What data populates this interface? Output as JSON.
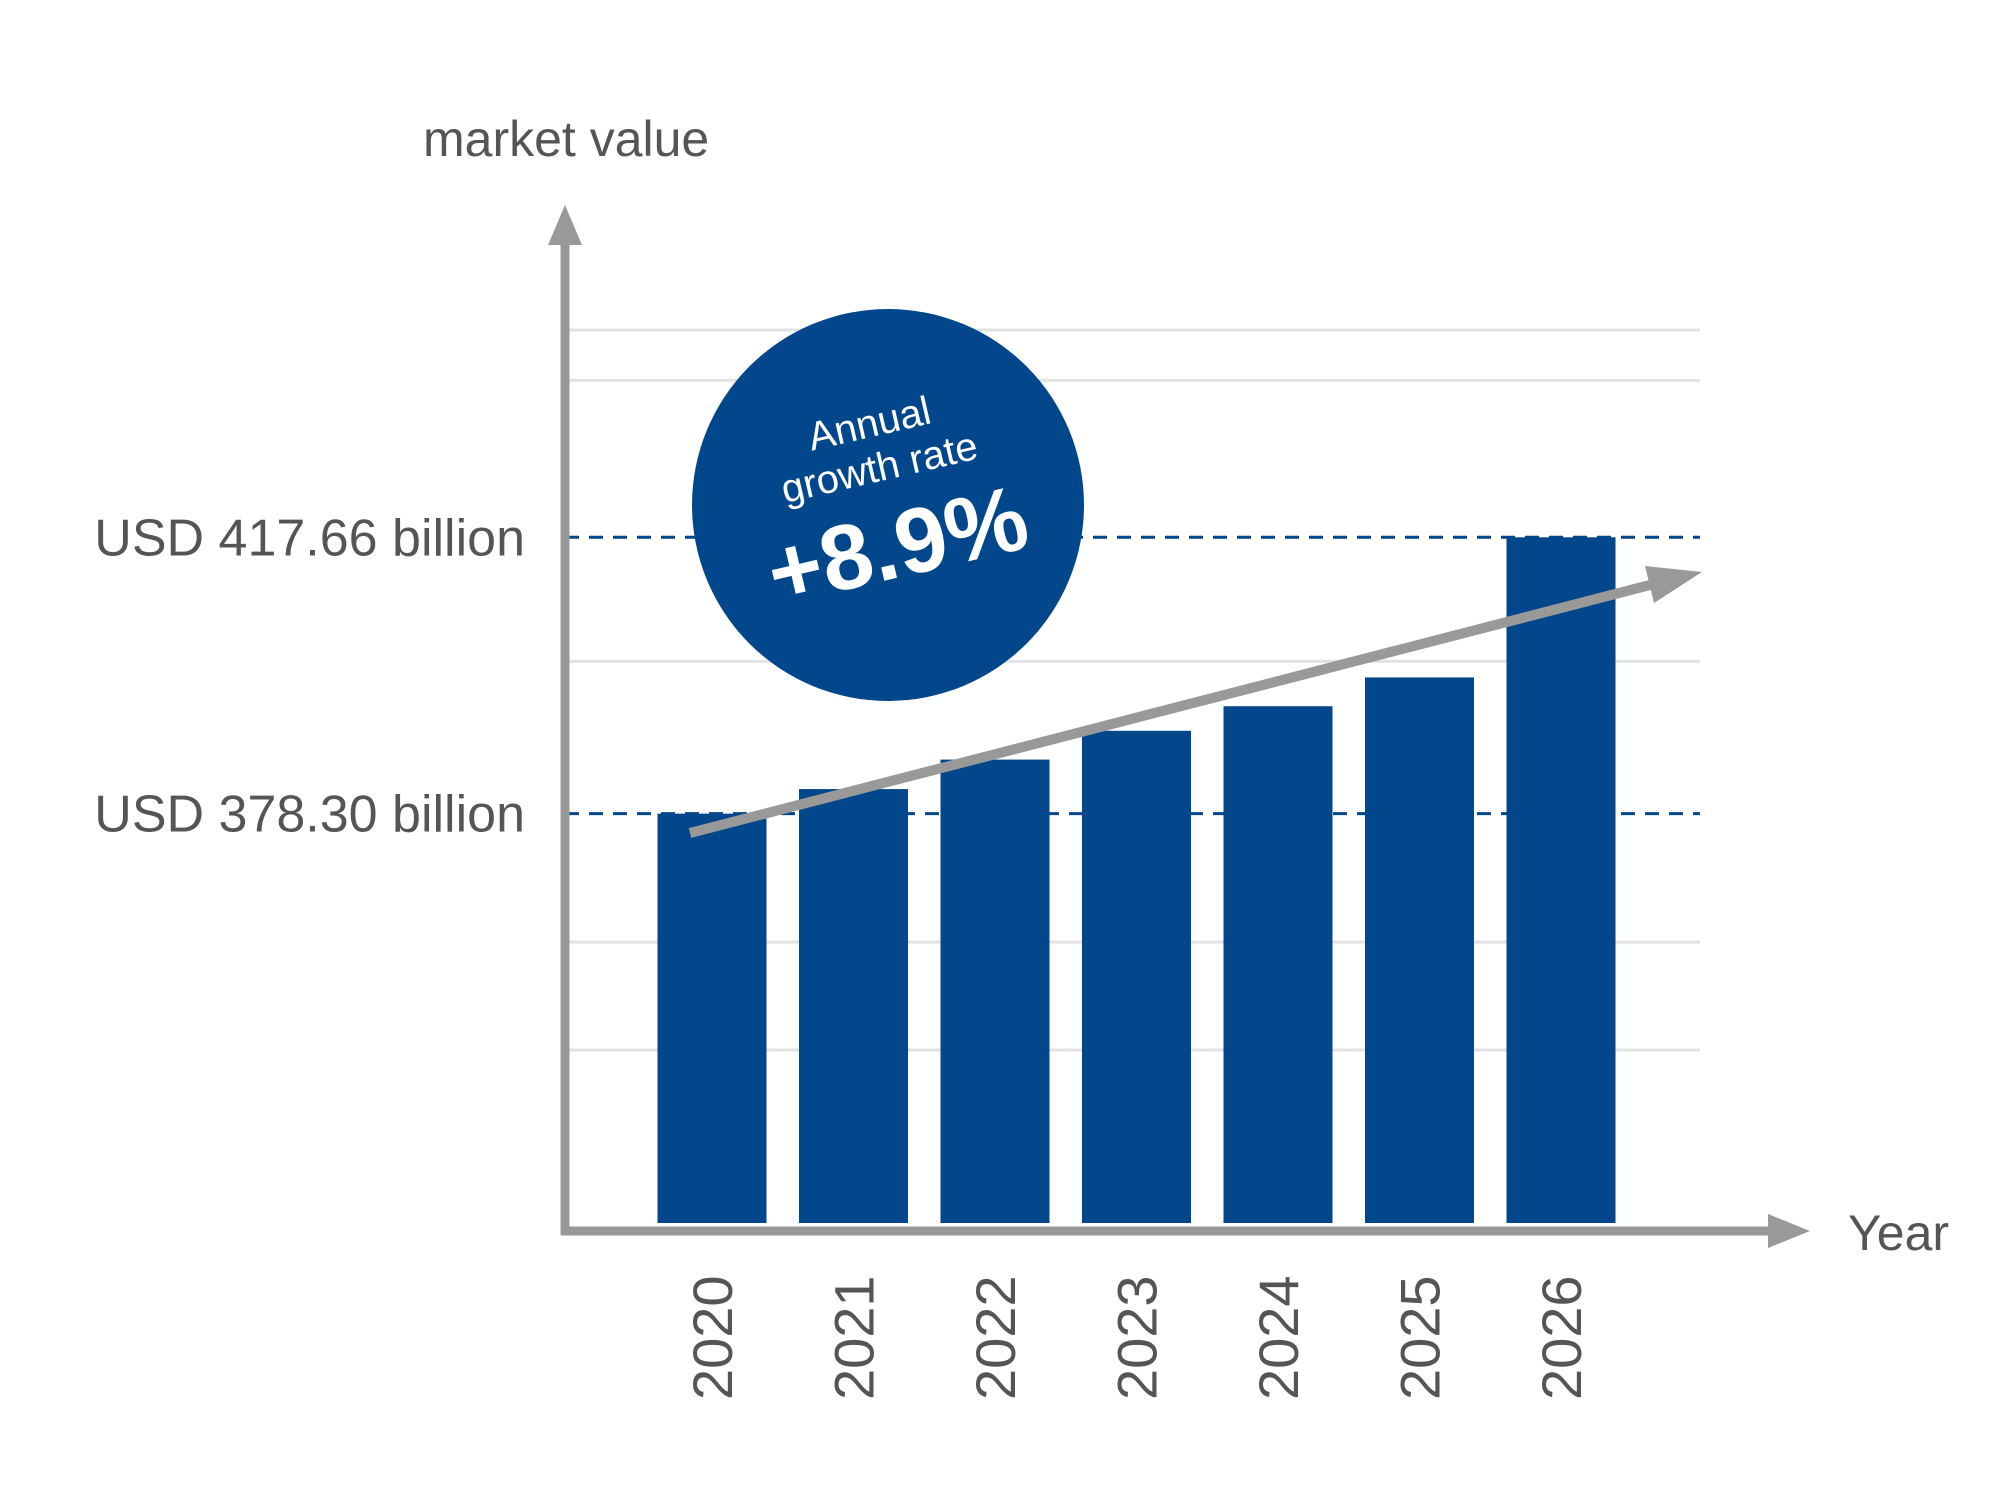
{
  "chart_data": {
    "type": "bar",
    "ylabel": "market value",
    "xlabel": "Year",
    "categories": [
      "2020",
      "2021",
      "2022",
      "2023",
      "2024",
      "2025",
      "2026"
    ],
    "values": [
      378.3,
      381.8,
      386.0,
      390.1,
      393.6,
      397.7,
      417.66
    ],
    "ylim": [
      320,
      460
    ],
    "grid": true,
    "reference_lines": [
      {
        "value": 417.66,
        "label": "USD 417.66 billion"
      },
      {
        "value": 378.3,
        "label": "USD 378.30 billion"
      }
    ],
    "annotation": {
      "line1": "Annual",
      "line2": "growth rate",
      "value": "+8.9%"
    }
  },
  "colors": {
    "bar": "#02478c",
    "axis": "#999999",
    "grid": "#e2e2e2",
    "reference": "#02478c",
    "badge": "#02478c"
  }
}
